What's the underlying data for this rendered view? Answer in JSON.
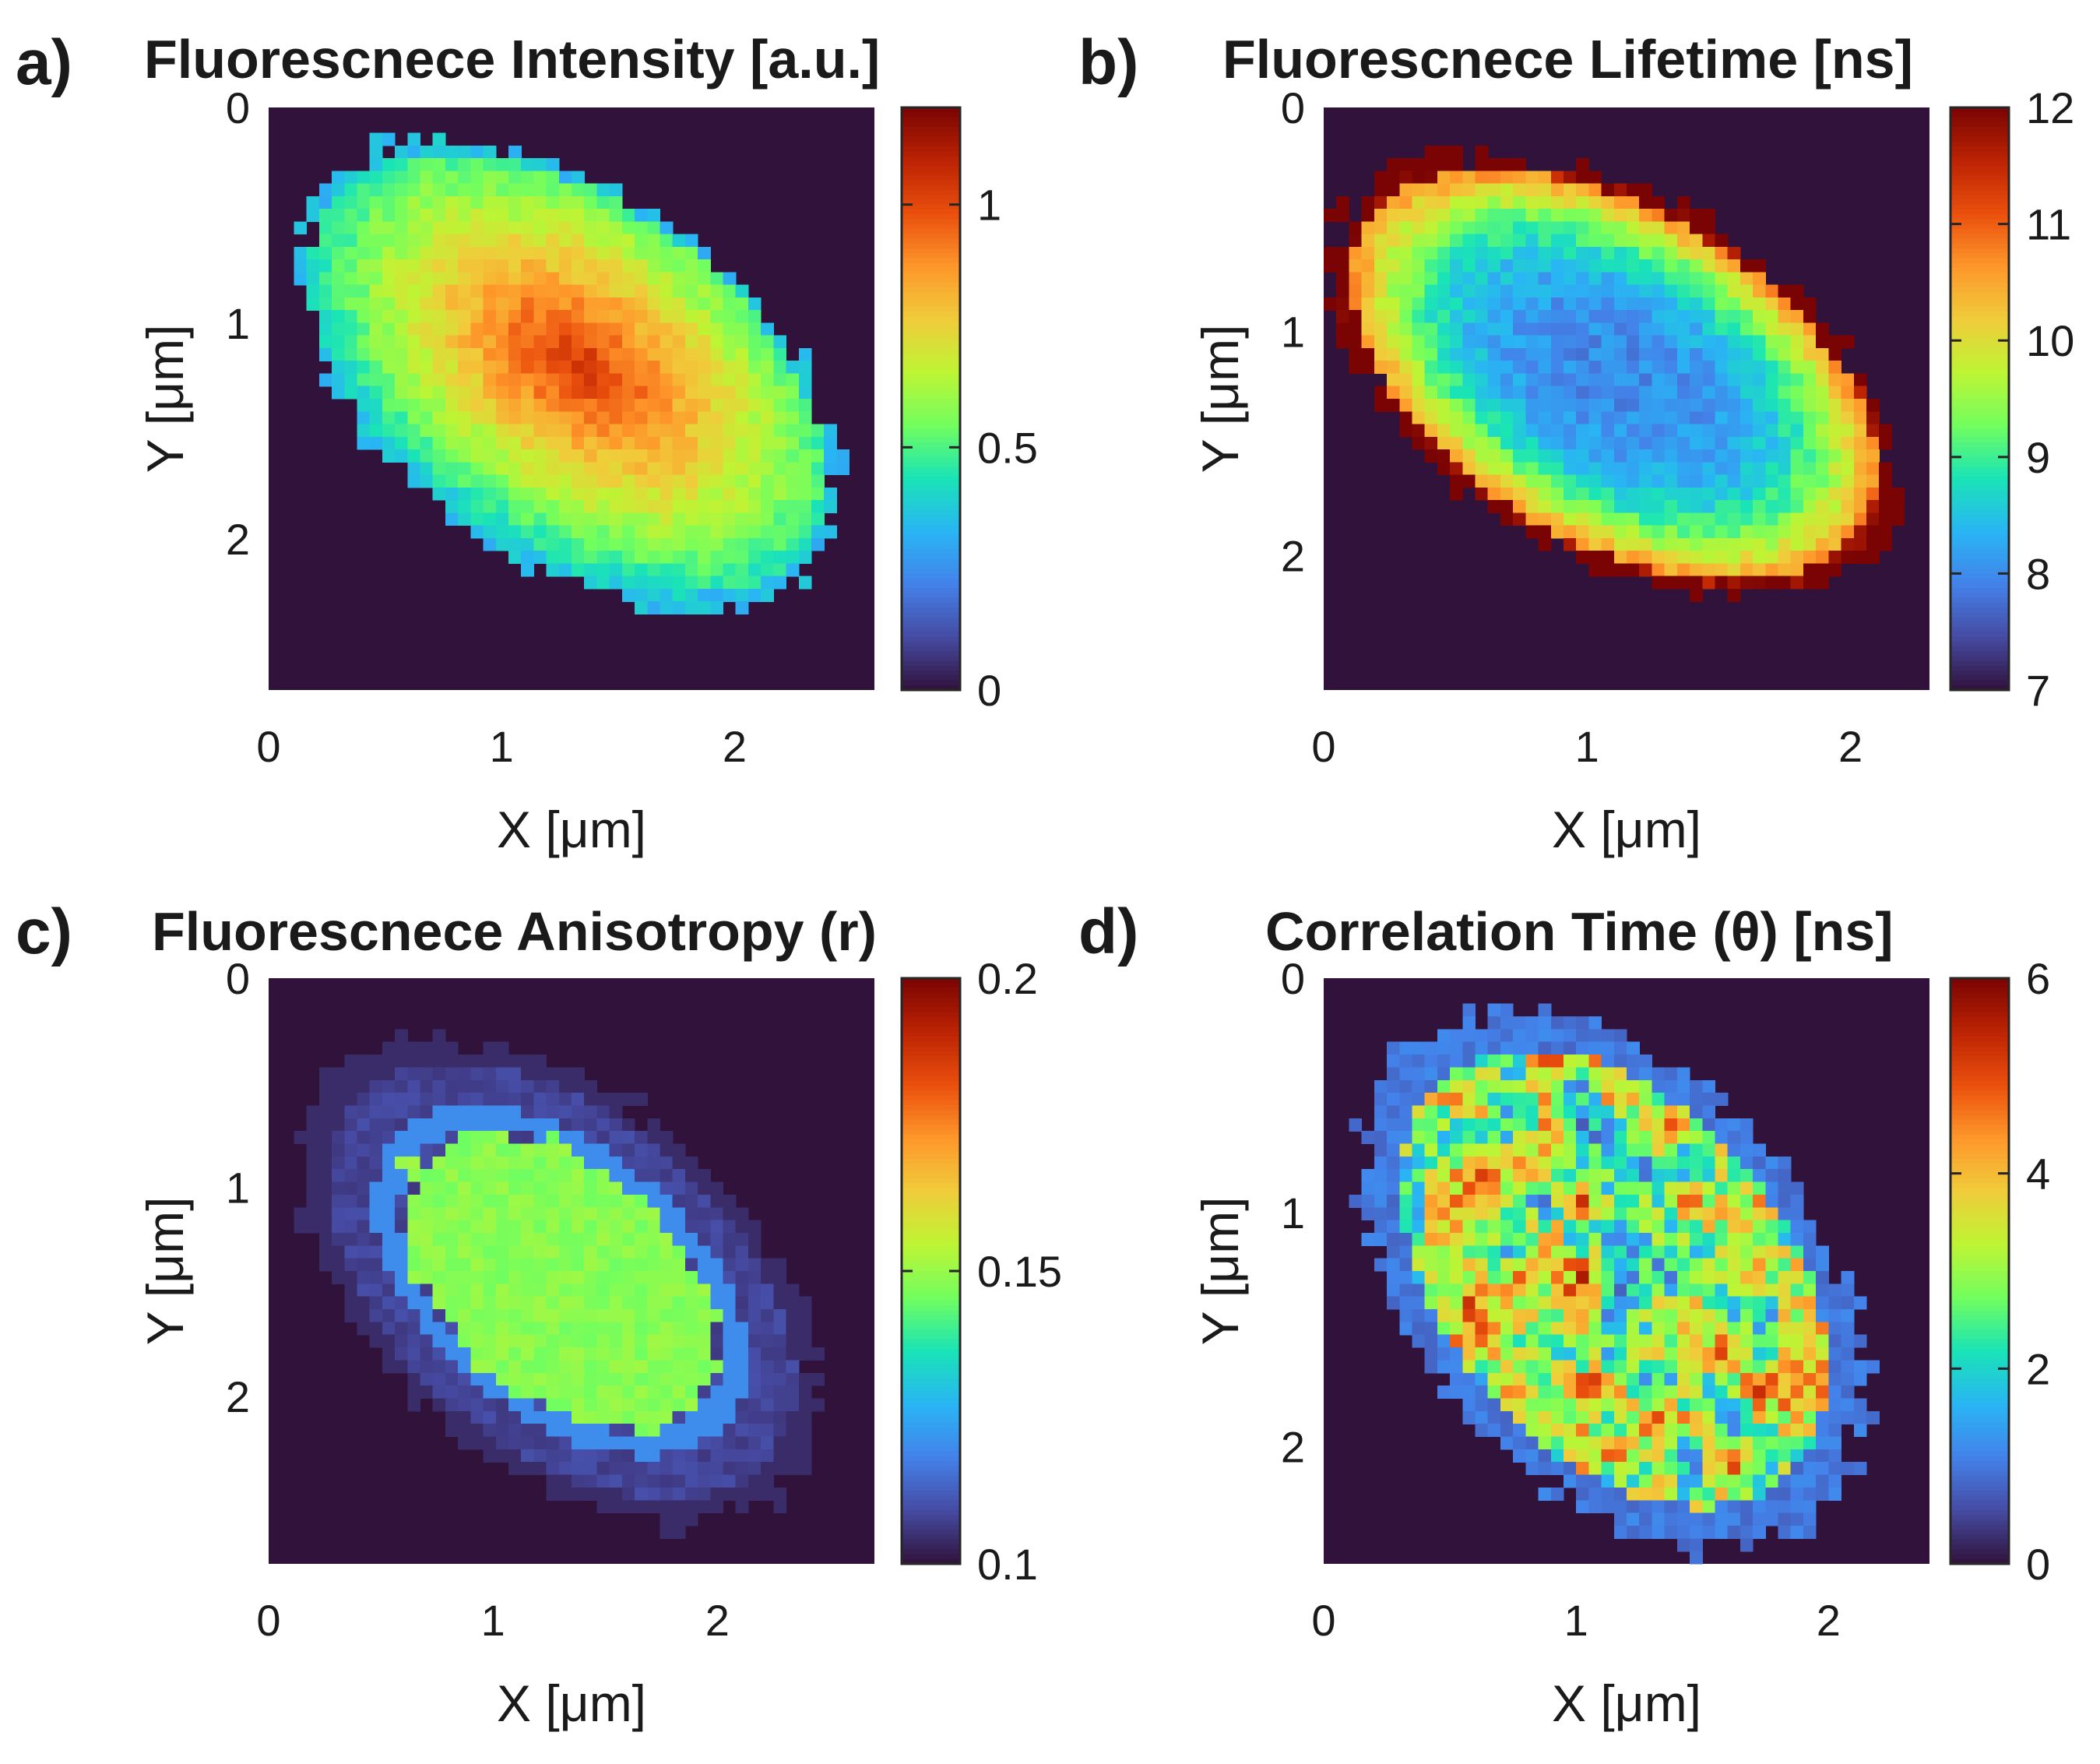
{
  "figure": {
    "background": "#ffffff",
    "colormap": "turbo",
    "outside_color": "#30123b"
  },
  "chart_data": [
    {
      "type": "heatmap",
      "panel_label": "a)",
      "title": "Fluorescnece Intensity [a.u.]",
      "xlabel": "X [μm]",
      "ylabel": "Y [μm]",
      "xlim": [
        0,
        2.6
      ],
      "ylim": [
        0,
        2.7
      ],
      "xticks": [
        "0",
        "1",
        "2"
      ],
      "yticks": [
        "0",
        "1",
        "2"
      ],
      "clim": [
        0,
        1.2
      ],
      "colorbar_ticks": [
        "0",
        "0.5",
        "1"
      ],
      "grid_size": [
        48,
        46
      ],
      "object": {
        "center": [
          1.28,
          1.24
        ],
        "semi_axes": [
          1.36,
          0.82
        ],
        "angle_deg": 40
      },
      "profile": {
        "shape": "peaked",
        "center_value": 1.05,
        "edge_value": 0.4,
        "noise": 0.05
      }
    },
    {
      "type": "heatmap",
      "panel_label": "b)",
      "title": "Fluorescnece Lifetime [ns]",
      "xlabel": "X [μm]",
      "ylabel": "Y [μm]",
      "xlim": [
        0,
        2.3
      ],
      "ylim": [
        0,
        2.6
      ],
      "xticks": [
        "0",
        "1",
        "2"
      ],
      "yticks": [
        "0",
        "1",
        "2"
      ],
      "clim": [
        7,
        12
      ],
      "colorbar_ticks": [
        "7",
        "8",
        "9",
        "10",
        "11",
        "12"
      ],
      "grid_size": [
        48,
        46
      ],
      "object": {
        "center": [
          1.1,
          1.2
        ],
        "semi_axes": [
          1.25,
          0.75
        ],
        "angle_deg": 40
      },
      "profile": {
        "shape": "rim",
        "center_value": 8.0,
        "edge_value": 11.4,
        "noise": 0.25
      }
    },
    {
      "type": "heatmap",
      "panel_label": "c)",
      "title": "Fluorescnece Anisotropy (r)",
      "xlabel": "X [μm]",
      "ylabel": "Y [μm]",
      "xlim": [
        0,
        2.7
      ],
      "ylim": [
        0,
        2.8
      ],
      "xticks": [
        "0",
        "1",
        "2"
      ],
      "yticks": [
        "0",
        "1",
        "2"
      ],
      "clim": [
        0.1,
        0.2
      ],
      "colorbar_ticks": [
        "0.1",
        "0.15",
        "0.2"
      ],
      "grid_size": [
        48,
        46
      ],
      "object": {
        "center": [
          1.3,
          1.45
        ],
        "semi_axes": [
          1.4,
          0.85
        ],
        "angle_deg": 45
      },
      "profile": {
        "shape": "core",
        "center_value": 0.148,
        "edge_value": 0.108,
        "noise": 0.003
      }
    },
    {
      "type": "heatmap",
      "panel_label": "d)",
      "title": "Correlation Time (θ) [ns]",
      "xlabel": "X [μm]",
      "ylabel": "Y [μm]",
      "xlim": [
        0,
        2.4
      ],
      "ylim": [
        0,
        2.5
      ],
      "xticks": [
        "0",
        "1",
        "2"
      ],
      "yticks": [
        "0",
        "1",
        "2"
      ],
      "clim": [
        0,
        6
      ],
      "colorbar_ticks": [
        "0",
        "2",
        "4",
        "6"
      ],
      "grid_size": [
        48,
        46
      ],
      "object": {
        "center": [
          1.15,
          1.28
        ],
        "semi_axes": [
          1.28,
          0.82
        ],
        "angle_deg": 55
      },
      "profile": {
        "shape": "patchy",
        "center_value": 3.0,
        "edge_value": 0.8,
        "noise": 1.1
      }
    }
  ]
}
